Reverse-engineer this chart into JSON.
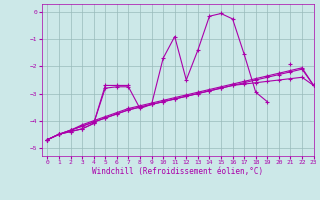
{
  "xlabel": "Windchill (Refroidissement éolien,°C)",
  "xlim": [
    -0.5,
    23
  ],
  "ylim": [
    -5.3,
    0.3
  ],
  "yticks": [
    0,
    -1,
    -2,
    -3,
    -4,
    -5
  ],
  "xticks": [
    0,
    1,
    2,
    3,
    4,
    5,
    6,
    7,
    8,
    9,
    10,
    11,
    12,
    13,
    14,
    15,
    16,
    17,
    18,
    19,
    20,
    21,
    22,
    23
  ],
  "bg_color": "#cce8e8",
  "line_color": "#aa00aa",
  "grid_color": "#99bbbb",
  "lines": [
    [
      -4.7,
      -4.5,
      -4.4,
      -4.3,
      -4.1,
      -2.7,
      -2.7,
      -2.7,
      null,
      null,
      null,
      null,
      null,
      null,
      null,
      null,
      null,
      null,
      null,
      null,
      null,
      -1.9,
      null,
      -2.7
    ],
    [
      -4.7,
      -4.5,
      -4.4,
      -4.3,
      -4.1,
      -2.8,
      -2.75,
      -2.75,
      -3.55,
      -3.4,
      -1.7,
      -0.9,
      -2.5,
      -1.4,
      -0.15,
      -0.05,
      -0.25,
      -1.55,
      -2.95,
      -3.3,
      null,
      null,
      null,
      null
    ],
    [
      -4.7,
      -4.5,
      -4.35,
      -4.2,
      -4.05,
      -3.9,
      -3.75,
      -3.6,
      -3.5,
      -3.4,
      -3.3,
      -3.2,
      -3.1,
      -3.0,
      -2.9,
      -2.8,
      -2.7,
      -2.65,
      -2.6,
      -2.55,
      -2.5,
      -2.45,
      -2.4,
      -2.7
    ],
    [
      -4.7,
      -4.5,
      -4.35,
      -4.2,
      -4.05,
      -3.9,
      -3.75,
      -3.6,
      -3.5,
      -3.4,
      -3.3,
      -3.2,
      -3.1,
      -3.0,
      -2.9,
      -2.8,
      -2.7,
      -2.6,
      -2.5,
      -2.4,
      -2.3,
      -2.2,
      -2.1,
      -2.7
    ],
    [
      -4.7,
      -4.5,
      -4.35,
      -4.15,
      -4.0,
      -3.85,
      -3.7,
      -3.55,
      -3.45,
      -3.35,
      -3.25,
      -3.15,
      -3.05,
      -2.95,
      -2.85,
      -2.75,
      -2.65,
      -2.55,
      -2.45,
      -2.35,
      -2.25,
      -2.15,
      -2.05,
      -2.7
    ]
  ]
}
